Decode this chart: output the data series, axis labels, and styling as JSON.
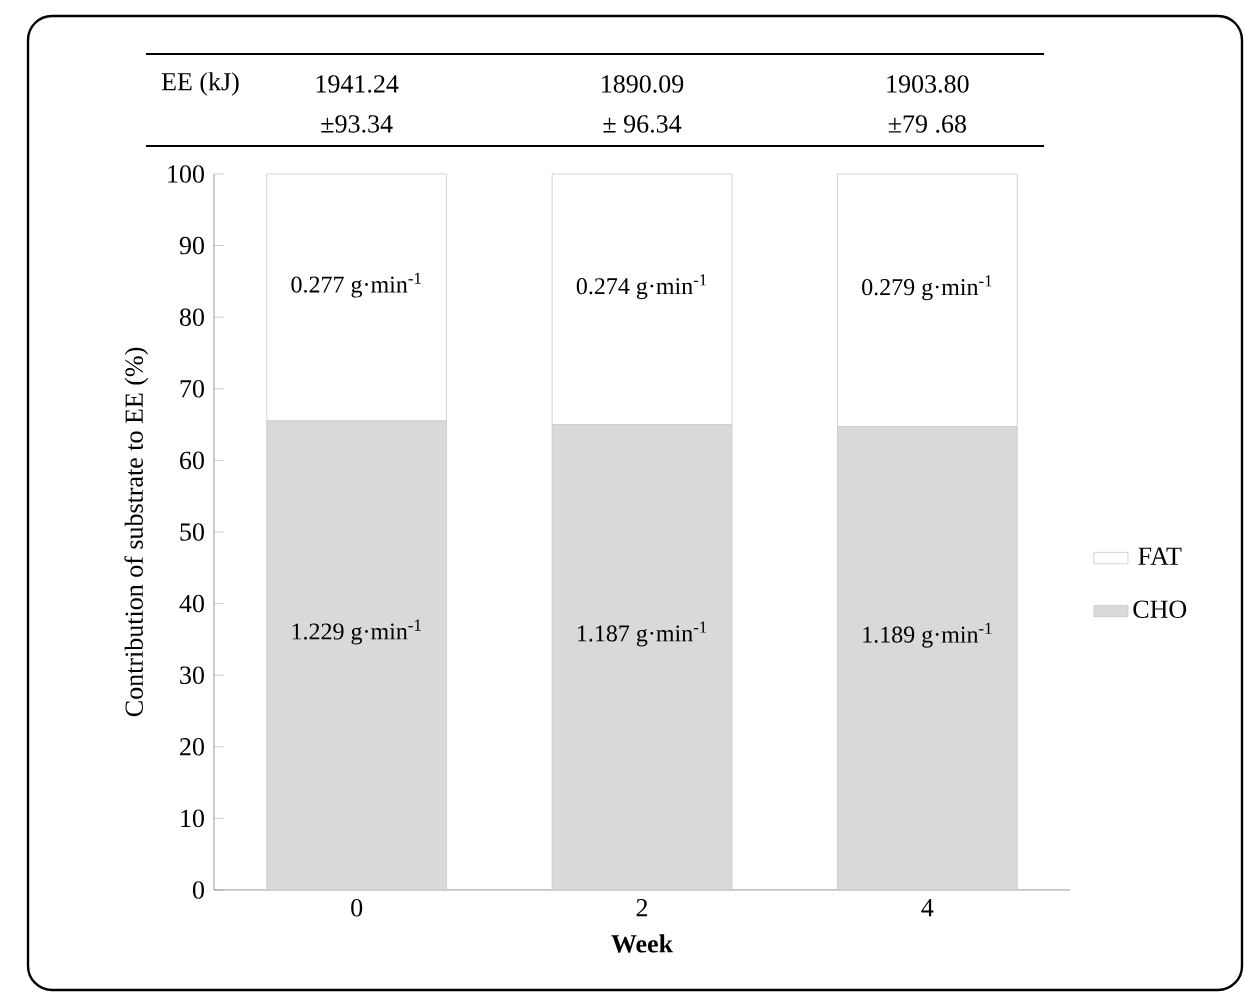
{
  "chart_data": {
    "type": "bar",
    "stacked": true,
    "categories": [
      "0",
      "2",
      "4"
    ],
    "xlabel": "**Week**",
    "ylabel": "Contribution of substrate to EE (%)",
    "ylim": [
      0,
      100
    ],
    "yticks": [
      0,
      10,
      20,
      30,
      40,
      50,
      60,
      70,
      80,
      90,
      100
    ],
    "legend": "right",
    "grid": false,
    "series": [
      {
        "name": "CHO",
        "color": "#d9d9d9",
        "values": [
          65.5,
          65,
          64.7
        ]
      },
      {
        "name": "FAT",
        "color": "#ffffff",
        "values": [
          34.5,
          35,
          35.3
        ]
      }
    ],
    "annotations": [
      "EE (kJ)",
      "1941.24",
      "±93.34",
      "1890.09",
      "± 96.34",
      "1903.80",
      "±79 .68",
      "1.229 g·min$^{-1}$",
      "1.187 g·min$^{-1}$",
      "1.189 g·min$^{-1}$",
      "0.277 g·min$^{-1}$",
      "0.274 g·min$^{-1}$",
      "0.279 g·min$^{-1}$"
    ]
  }
}
